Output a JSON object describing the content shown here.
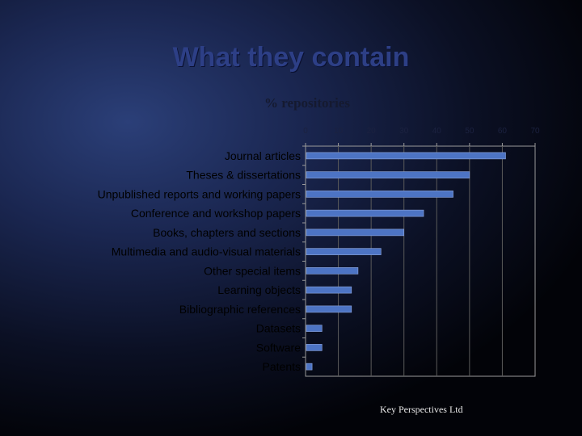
{
  "slide": {
    "title": "What they contain",
    "footer": "Key Perspectives Ltd"
  },
  "colors": {
    "bar": "#4d74c4",
    "bar_edge": "#8fa8e0",
    "axis": "#9a9a9a",
    "grid": "#5a5a5a",
    "label": "#000000"
  },
  "chart_data": {
    "type": "bar",
    "orientation": "horizontal",
    "title": "% repositories",
    "xlabel": "",
    "ylabel": "",
    "xlim": [
      0,
      70
    ],
    "x_ticks": [
      0,
      10,
      20,
      30,
      40,
      50,
      60,
      70
    ],
    "grid": true,
    "categories": [
      "Journal articles",
      "Theses & dissertations",
      "Unpublished reports and working papers",
      "Conference and workshop papers",
      "Books, chapters and sections",
      "Multimedia and audio-visual materials",
      "Other special items",
      "Learning objects",
      "Bibliographic references",
      "Datasets",
      "Software",
      "Patents"
    ],
    "values": [
      61,
      50,
      45,
      36,
      30,
      23,
      16,
      14,
      14,
      5,
      5,
      2
    ]
  }
}
